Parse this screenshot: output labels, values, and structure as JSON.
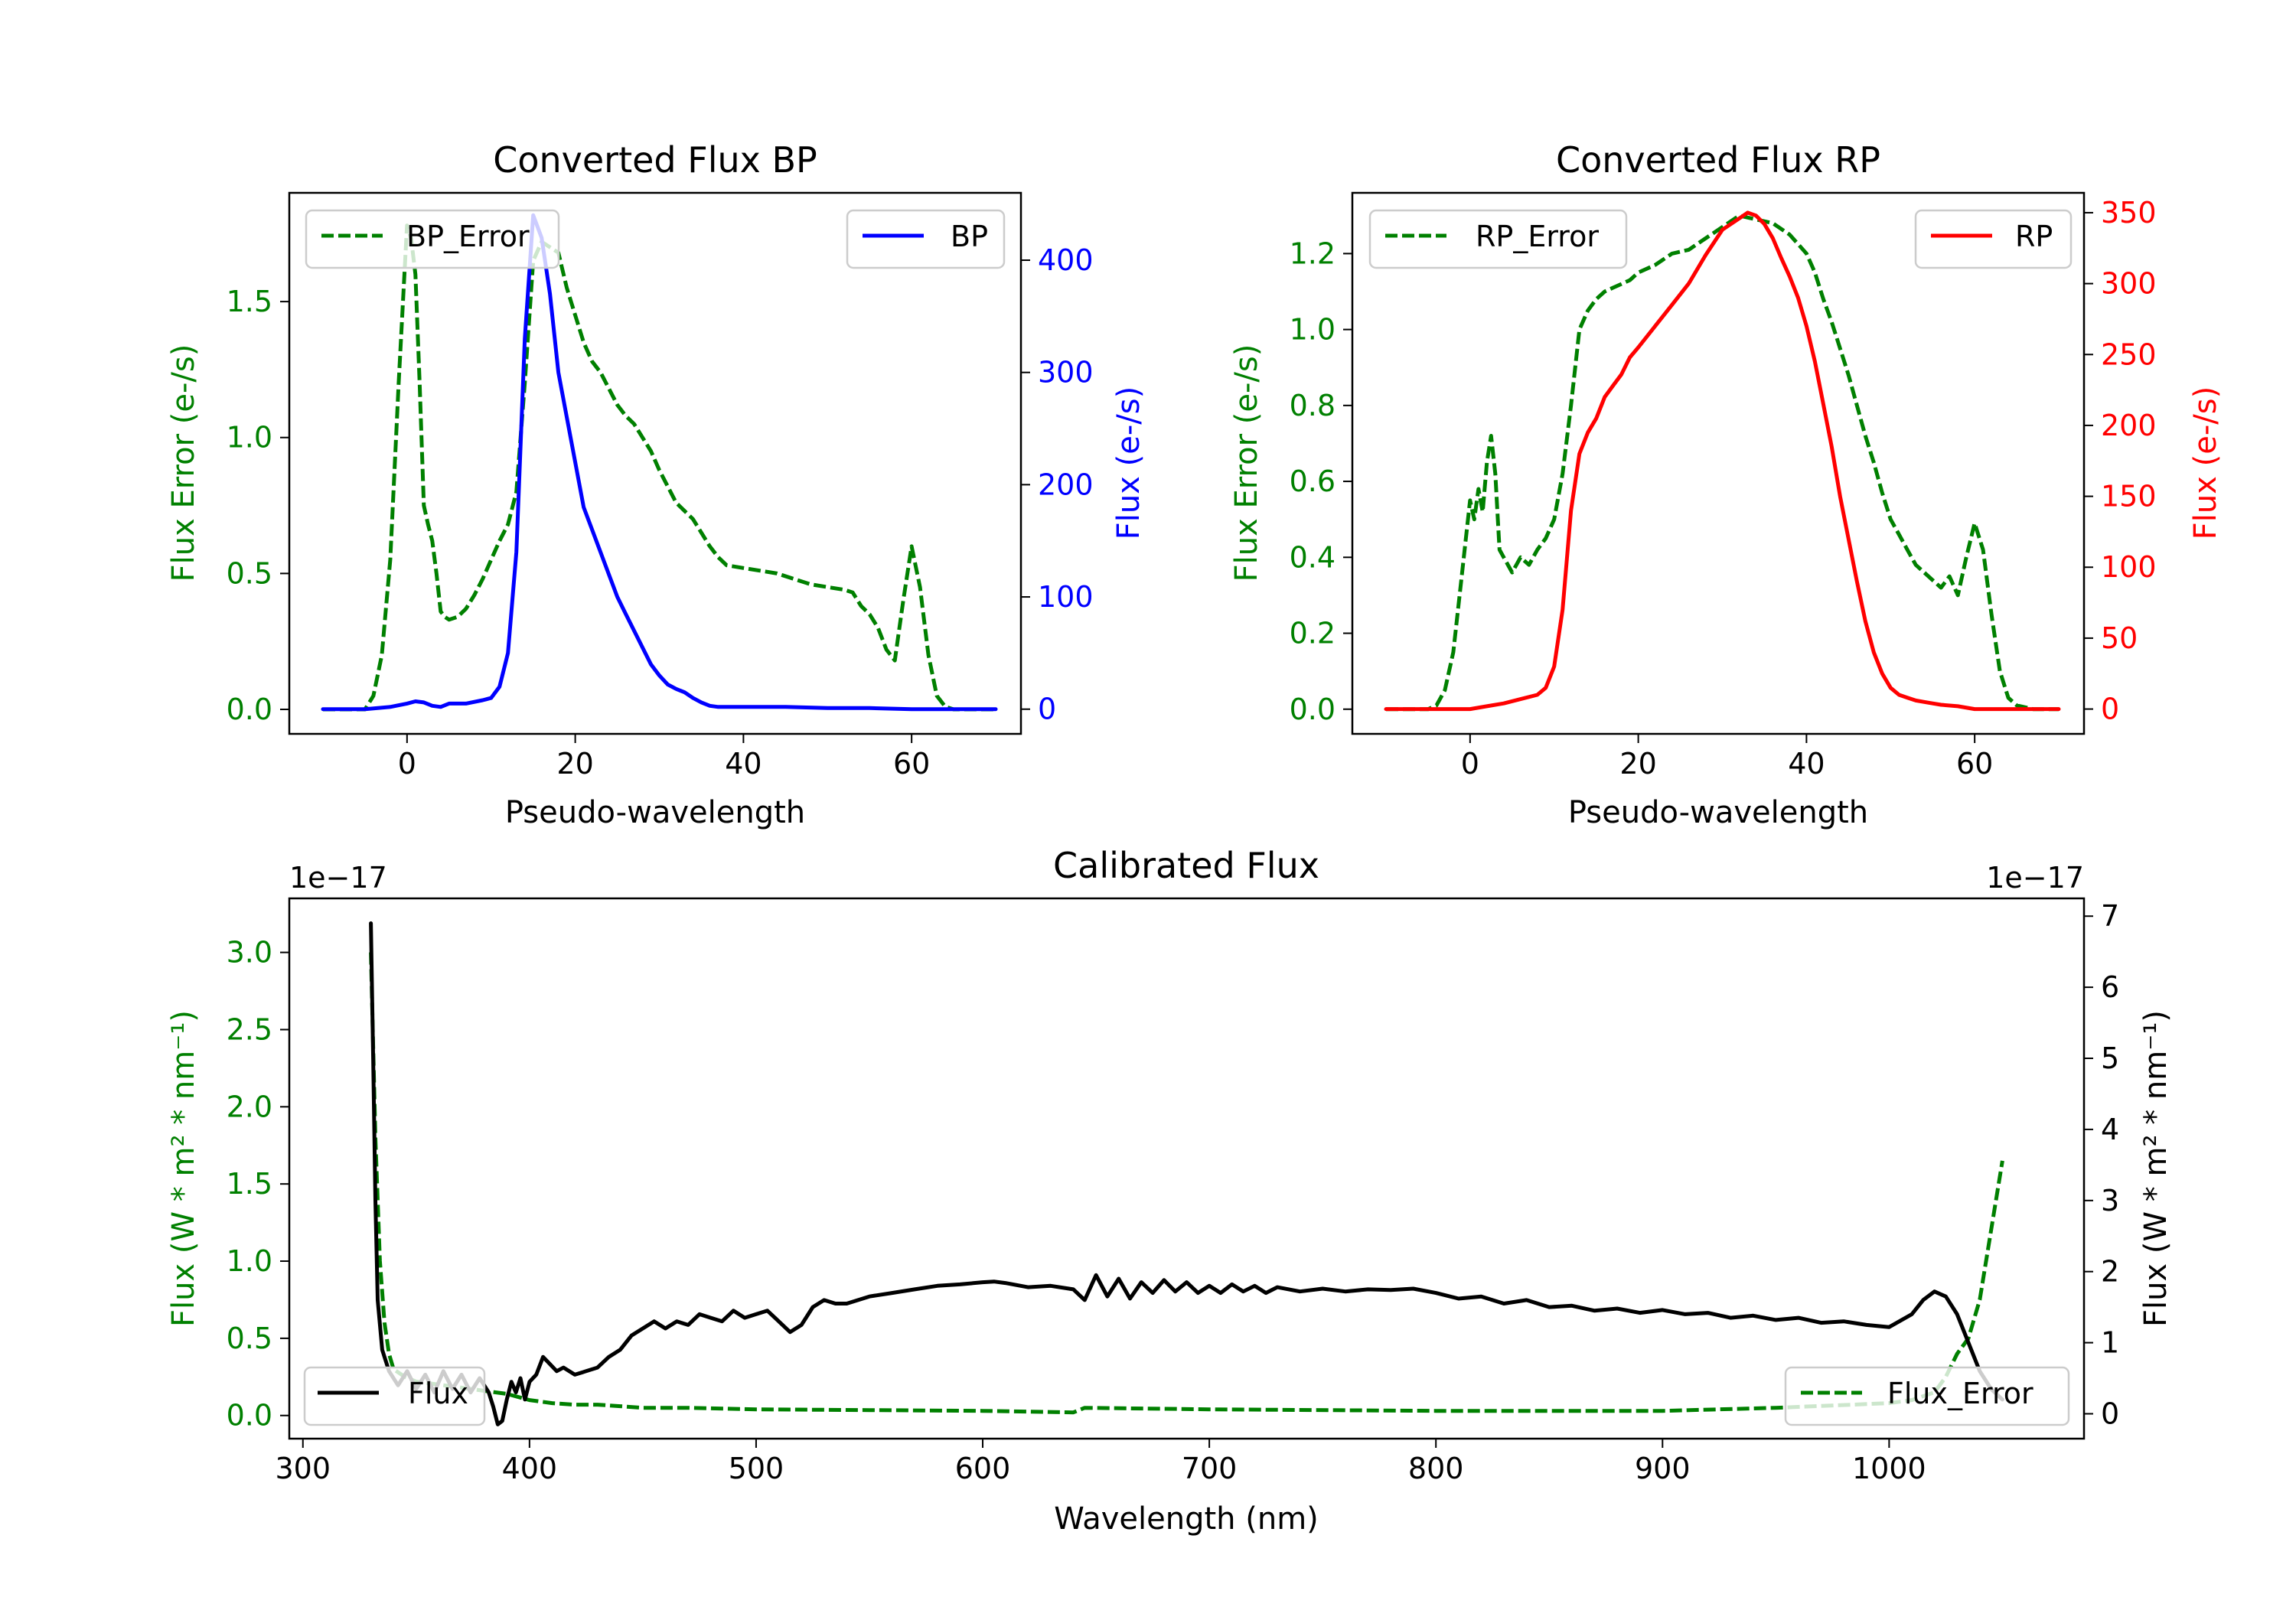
{
  "colors": {
    "error": "#008000",
    "bp": "#0000ff",
    "rp": "#ff0000",
    "flux": "#000000"
  },
  "chart_data": [
    {
      "id": "bp",
      "type": "line",
      "title": "Converted Flux BP",
      "xlabel": "Pseudo-wavelength",
      "ylabel_left": "Flux Error (e-/s)",
      "ylabel_right": "Flux (e-/s)",
      "xlim": [
        -14,
        73
      ],
      "ylim_left": [
        -0.09,
        1.9
      ],
      "ylim_right": [
        -22,
        460
      ],
      "xticks": [
        0,
        20,
        40,
        60
      ],
      "yticks_left": [
        0.0,
        0.5,
        1.0,
        1.5
      ],
      "yticks_left_labels": [
        "0.0",
        "0.5",
        "1.0",
        "1.5"
      ],
      "yticks_right": [
        0,
        100,
        200,
        300,
        400
      ],
      "yticks_right_labels": [
        "0",
        "100",
        "200",
        "300",
        "400"
      ],
      "series": [
        {
          "name": "BP_Error",
          "axis": "left",
          "style": "dashed",
          "color": "#008000",
          "x": [
            -10,
            -7,
            -5,
            -4,
            -3,
            -2,
            -1,
            0,
            0.5,
            1,
            1.5,
            2,
            2.5,
            3,
            3.5,
            4,
            4.5,
            5,
            6,
            7,
            8,
            9,
            10,
            11,
            12,
            13,
            14,
            15,
            16,
            17,
            18,
            19,
            20,
            21,
            22,
            23,
            24,
            25,
            26,
            27,
            28,
            29,
            30,
            31,
            32,
            33,
            34,
            35,
            36,
            37,
            38,
            40,
            42,
            44,
            46,
            48,
            50,
            52,
            53,
            54,
            55,
            56,
            57,
            58,
            59,
            60,
            61,
            62,
            63,
            64,
            65,
            67,
            70
          ],
          "values": [
            0.0,
            0.0,
            0.0,
            0.05,
            0.2,
            0.55,
            1.2,
            1.78,
            1.73,
            1.6,
            1.2,
            0.75,
            0.68,
            0.62,
            0.5,
            0.36,
            0.34,
            0.33,
            0.34,
            0.37,
            0.42,
            0.48,
            0.55,
            0.62,
            0.68,
            0.8,
            1.2,
            1.65,
            1.72,
            1.7,
            1.68,
            1.55,
            1.45,
            1.35,
            1.28,
            1.24,
            1.18,
            1.12,
            1.08,
            1.05,
            1.0,
            0.95,
            0.88,
            0.82,
            0.76,
            0.73,
            0.7,
            0.65,
            0.6,
            0.56,
            0.53,
            0.52,
            0.51,
            0.5,
            0.48,
            0.46,
            0.45,
            0.44,
            0.43,
            0.38,
            0.35,
            0.3,
            0.22,
            0.18,
            0.4,
            0.6,
            0.45,
            0.2,
            0.05,
            0.01,
            0.0,
            0.0,
            0.0
          ]
        },
        {
          "name": "BP",
          "axis": "right",
          "style": "solid",
          "color": "#0000ff",
          "x": [
            -10,
            -5,
            -2,
            0,
            1,
            2,
            3,
            4,
            5,
            7,
            9,
            10,
            11,
            12,
            13,
            14,
            15,
            16,
            17,
            18,
            19,
            20,
            21,
            22,
            23,
            24,
            25,
            26,
            27,
            28,
            29,
            30,
            31,
            32,
            33,
            34,
            35,
            36,
            37,
            38,
            40,
            45,
            50,
            55,
            60,
            65,
            70
          ],
          "values": [
            0,
            0,
            2,
            5,
            7,
            6,
            3,
            2,
            5,
            5,
            8,
            10,
            20,
            50,
            140,
            330,
            440,
            420,
            370,
            300,
            260,
            220,
            180,
            160,
            140,
            120,
            100,
            85,
            70,
            55,
            40,
            30,
            22,
            18,
            15,
            10,
            6,
            3,
            2,
            2,
            2,
            2,
            1,
            1,
            0,
            0,
            0
          ]
        }
      ]
    },
    {
      "id": "rp",
      "type": "line",
      "title": "Converted Flux RP",
      "xlabel": "Pseudo-wavelength",
      "ylabel_left": "Flux Error (e-/s)",
      "ylabel_right": "Flux (e-/s)",
      "xlim": [
        -14,
        73
      ],
      "ylim_left": [
        -0.065,
        1.36
      ],
      "ylim_right": [
        -17.5,
        364
      ],
      "xticks": [
        0,
        20,
        40,
        60
      ],
      "yticks_left": [
        0.0,
        0.2,
        0.4,
        0.6,
        0.8,
        1.0,
        1.2
      ],
      "yticks_left_labels": [
        "0.0",
        "0.2",
        "0.4",
        "0.6",
        "0.8",
        "1.0",
        "1.2"
      ],
      "yticks_right": [
        0,
        50,
        100,
        150,
        200,
        250,
        300,
        350
      ],
      "yticks_right_labels": [
        "0",
        "50",
        "100",
        "150",
        "200",
        "250",
        "300",
        "350"
      ],
      "series": [
        {
          "name": "RP_Error",
          "axis": "left",
          "style": "dashed",
          "color": "#008000",
          "x": [
            -10,
            -5,
            -4,
            -3,
            -2,
            -1,
            0,
            0.5,
            1,
            1.5,
            2,
            2.5,
            3,
            3.5,
            4,
            5,
            6,
            7,
            8,
            9,
            10,
            11,
            12,
            13,
            14,
            15,
            16,
            17,
            18,
            19,
            20,
            22,
            24,
            26,
            28,
            30,
            32,
            34,
            36,
            38,
            40,
            41,
            42,
            43,
            44,
            45,
            46,
            47,
            48,
            49,
            50,
            51,
            52,
            53,
            54,
            55,
            56,
            57,
            58,
            59,
            60,
            61,
            62,
            63,
            64,
            65,
            67,
            70
          ],
          "values": [
            0.0,
            0.0,
            0.01,
            0.05,
            0.15,
            0.35,
            0.55,
            0.5,
            0.58,
            0.52,
            0.65,
            0.72,
            0.62,
            0.42,
            0.4,
            0.36,
            0.4,
            0.38,
            0.42,
            0.45,
            0.5,
            0.62,
            0.8,
            1.0,
            1.05,
            1.08,
            1.1,
            1.11,
            1.12,
            1.13,
            1.15,
            1.17,
            1.2,
            1.21,
            1.24,
            1.27,
            1.3,
            1.29,
            1.28,
            1.25,
            1.2,
            1.15,
            1.08,
            1.02,
            0.95,
            0.88,
            0.8,
            0.72,
            0.65,
            0.57,
            0.5,
            0.46,
            0.42,
            0.38,
            0.36,
            0.34,
            0.32,
            0.35,
            0.3,
            0.4,
            0.49,
            0.42,
            0.25,
            0.1,
            0.03,
            0.01,
            0.0,
            0.0
          ]
        },
        {
          "name": "RP",
          "axis": "right",
          "style": "solid",
          "color": "#ff0000",
          "x": [
            -10,
            -5,
            0,
            2,
            4,
            6,
            8,
            9,
            10,
            11,
            12,
            13,
            14,
            15,
            16,
            17,
            18,
            19,
            20,
            22,
            24,
            26,
            28,
            30,
            32,
            33,
            34,
            35,
            36,
            37,
            38,
            39,
            40,
            41,
            42,
            43,
            44,
            45,
            46,
            47,
            48,
            49,
            50,
            51,
            52,
            53,
            54,
            55,
            56,
            58,
            60,
            65,
            70
          ],
          "values": [
            0,
            0,
            0,
            2,
            4,
            7,
            10,
            15,
            30,
            70,
            140,
            180,
            195,
            205,
            220,
            228,
            236,
            248,
            255,
            270,
            285,
            300,
            320,
            338,
            346,
            350,
            348,
            342,
            332,
            318,
            305,
            290,
            270,
            245,
            215,
            185,
            150,
            120,
            90,
            62,
            40,
            25,
            15,
            10,
            8,
            6,
            5,
            4,
            3,
            2,
            0,
            0,
            0
          ]
        }
      ]
    },
    {
      "id": "cal",
      "type": "line",
      "title": "Calibrated Flux",
      "xlabel": "Wavelength (nm)",
      "ylabel_left": "Flux (W * m² * nm⁻¹)",
      "ylabel_right": "Flux (W * m² * nm⁻¹)",
      "offset_left": "1e−17",
      "offset_right": "1e−17",
      "xlim": [
        294,
        1086
      ],
      "ylim_left": [
        -0.15,
        3.35
      ],
      "ylim_right": [
        -0.35,
        7.25
      ],
      "xticks": [
        300,
        400,
        500,
        600,
        700,
        800,
        900,
        1000
      ],
      "yticks_left": [
        0.0,
        0.5,
        1.0,
        1.5,
        2.0,
        2.5,
        3.0
      ],
      "yticks_left_labels": [
        "0.0",
        "0.5",
        "1.0",
        "1.5",
        "2.0",
        "2.5",
        "3.0"
      ],
      "yticks_right": [
        0,
        1,
        2,
        3,
        4,
        5,
        6,
        7
      ],
      "yticks_right_labels": [
        "0",
        "1",
        "2",
        "3",
        "4",
        "5",
        "6",
        "7"
      ],
      "series": [
        {
          "name": "Flux_Error",
          "axis": "left",
          "style": "dashed",
          "color": "#008000",
          "x": [
            330,
            332,
            334,
            336,
            338,
            340,
            345,
            350,
            360,
            370,
            380,
            390,
            400,
            410,
            420,
            430,
            440,
            450,
            470,
            500,
            550,
            600,
            640,
            645,
            700,
            800,
            900,
            950,
            1000,
            1010,
            1020,
            1025,
            1030,
            1035,
            1040,
            1045,
            1050
          ],
          "values": [
            3.0,
            1.8,
            1.0,
            0.6,
            0.4,
            0.3,
            0.25,
            0.22,
            0.2,
            0.18,
            0.16,
            0.14,
            0.1,
            0.08,
            0.07,
            0.07,
            0.06,
            0.05,
            0.05,
            0.04,
            0.035,
            0.03,
            0.02,
            0.05,
            0.04,
            0.03,
            0.03,
            0.05,
            0.08,
            0.1,
            0.15,
            0.25,
            0.4,
            0.5,
            0.75,
            1.2,
            1.65
          ]
        },
        {
          "name": "Flux",
          "axis": "right",
          "style": "solid",
          "color": "#000000",
          "x": [
            330,
            331,
            332,
            333,
            335,
            338,
            342,
            346,
            350,
            354,
            358,
            362,
            366,
            370,
            374,
            378,
            382,
            384,
            386,
            388,
            390,
            392,
            394,
            396,
            398,
            400,
            403,
            406,
            409,
            412,
            415,
            420,
            425,
            430,
            435,
            440,
            445,
            450,
            455,
            460,
            465,
            470,
            475,
            480,
            485,
            490,
            495,
            500,
            505,
            510,
            515,
            520,
            525,
            530,
            535,
            540,
            550,
            560,
            570,
            580,
            590,
            600,
            605,
            610,
            620,
            630,
            640,
            645,
            650,
            655,
            660,
            665,
            670,
            675,
            680,
            685,
            690,
            695,
            700,
            705,
            710,
            715,
            720,
            725,
            730,
            740,
            750,
            760,
            770,
            780,
            790,
            800,
            810,
            820,
            830,
            840,
            850,
            860,
            870,
            880,
            890,
            900,
            910,
            920,
            930,
            940,
            950,
            960,
            970,
            980,
            990,
            1000,
            1010,
            1015,
            1020,
            1025,
            1030,
            1035,
            1040,
            1045,
            1050
          ],
          "values": [
            6.9,
            5.0,
            3.0,
            1.6,
            0.9,
            0.6,
            0.4,
            0.6,
            0.35,
            0.55,
            0.3,
            0.6,
            0.35,
            0.55,
            0.3,
            0.5,
            0.3,
            0.1,
            -0.15,
            -0.1,
            0.2,
            0.45,
            0.3,
            0.5,
            0.2,
            0.45,
            0.55,
            0.8,
            0.7,
            0.6,
            0.65,
            0.55,
            0.6,
            0.65,
            0.8,
            0.9,
            1.1,
            1.2,
            1.3,
            1.2,
            1.3,
            1.25,
            1.4,
            1.35,
            1.3,
            1.45,
            1.35,
            1.4,
            1.45,
            1.3,
            1.15,
            1.25,
            1.5,
            1.6,
            1.55,
            1.55,
            1.65,
            1.7,
            1.75,
            1.8,
            1.82,
            1.85,
            1.86,
            1.84,
            1.78,
            1.8,
            1.75,
            1.6,
            1.95,
            1.65,
            1.9,
            1.62,
            1.85,
            1.7,
            1.88,
            1.72,
            1.85,
            1.7,
            1.8,
            1.7,
            1.82,
            1.72,
            1.8,
            1.7,
            1.78,
            1.72,
            1.76,
            1.72,
            1.75,
            1.74,
            1.76,
            1.7,
            1.62,
            1.65,
            1.55,
            1.6,
            1.5,
            1.52,
            1.45,
            1.48,
            1.42,
            1.46,
            1.4,
            1.42,
            1.35,
            1.38,
            1.32,
            1.35,
            1.28,
            1.3,
            1.25,
            1.22,
            1.4,
            1.6,
            1.72,
            1.65,
            1.4,
            1.0,
            0.6,
            0.35,
            0.2
          ]
        }
      ]
    }
  ]
}
